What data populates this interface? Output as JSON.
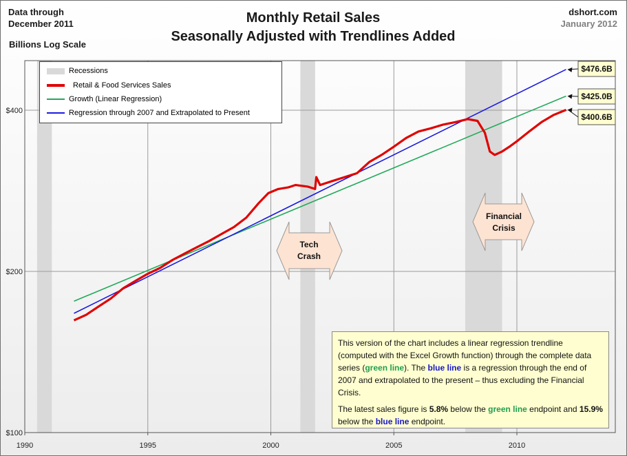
{
  "header": {
    "note_line1": "Data through",
    "note_line2": "December 2011",
    "scale_label": "Billions Log Scale",
    "title_line1": "Monthly Retail Sales",
    "title_line2": "Seasonally Adjusted with Trendlines Added",
    "source": "dshort.com",
    "source_date": "January 2012"
  },
  "legend": {
    "recessions": "Recessions",
    "retail": "Retail & Food Services Sales",
    "growth": "Growth (Linear Regression)",
    "regression": "Regression through 2007 and Extrapolated to Present"
  },
  "annotations": {
    "tech_line1": "Tech",
    "tech_line2": "Crash",
    "fin_line1": "Financial",
    "fin_line2": "Crisis"
  },
  "textbox": {
    "p1_a": "This version of the chart includes a linear regression trendline (computed with the Excel Growth function) through the complete data series (",
    "p1_green": "green line",
    "p1_b": "). The ",
    "p1_blue": "blue line",
    "p1_c": " is a regression through the end of 2007  and extrapolated to the present –   thus excluding the Financial Crisis.",
    "p2_a": "The latest sales figure is ",
    "p2_pct1": "5.8%",
    "p2_b": " below the ",
    "p2_green": "green line",
    "p2_c": " endpoint and ",
    "p2_pct2": "15.9%",
    "p2_d": " below the ",
    "p2_blue": "blue line",
    "p2_e": " endpoint."
  },
  "colors": {
    "retail": "#e00000",
    "growth": "#21a95a",
    "regression": "#1b1be0",
    "recession": "#d9d9d9",
    "callout_bg": "#fefed0",
    "arrow_fill": "#fde3d2"
  },
  "chart_data": {
    "type": "line",
    "title": "Monthly Retail Sales — Seasonally Adjusted with Trendlines Added",
    "xlabel": "",
    "ylabel": "Billions (log scale)",
    "y_scale": "log",
    "xlim": [
      1990,
      2014
    ],
    "ylim": [
      100,
      500
    ],
    "x_ticks": [
      1990,
      1995,
      2000,
      2005,
      2010
    ],
    "y_ticks": [
      100,
      200,
      400
    ],
    "y_tick_labels": [
      "$100",
      "$200",
      "$400"
    ],
    "legend_position": "top-left",
    "recessions": [
      [
        1990.5,
        1991.1
      ],
      [
        2001.2,
        2001.8
      ],
      [
        2007.9,
        2009.4
      ]
    ],
    "series": [
      {
        "name": "Retail & Food Services Sales",
        "x": [
          1992.0,
          1992.5,
          1993.0,
          1993.5,
          1994.0,
          1994.5,
          1995.0,
          1995.5,
          1996.0,
          1996.5,
          1997.0,
          1997.5,
          1998.0,
          1998.5,
          1999.0,
          1999.5,
          1999.9,
          2000.3,
          2000.7,
          2001.0,
          2001.5,
          2001.8,
          2001.85,
          2002.0,
          2002.5,
          2003.0,
          2003.5,
          2004.0,
          2004.5,
          2005.0,
          2005.5,
          2006.0,
          2006.5,
          2007.0,
          2007.5,
          2008.0,
          2008.4,
          2008.7,
          2008.9,
          2009.1,
          2009.4,
          2009.7,
          2010.0,
          2010.5,
          2011.0,
          2011.5,
          2012.0
        ],
        "values": [
          162,
          166,
          172,
          178,
          186,
          192,
          198,
          203,
          210,
          216,
          222,
          228,
          235,
          242,
          252,
          268,
          280,
          285,
          287,
          290,
          288,
          285,
          300,
          290,
          295,
          300,
          305,
          320,
          330,
          342,
          355,
          365,
          370,
          376,
          380,
          385,
          382,
          363,
          335,
          330,
          335,
          342,
          350,
          365,
          380,
          392,
          400.6
        ]
      },
      {
        "name": "Growth (Linear Regression)",
        "x": [
          1992.0,
          2012.0
        ],
        "values": [
          176,
          425.0
        ]
      },
      {
        "name": "Regression through 2007 and Extrapolated to Present",
        "x": [
          1992.0,
          2012.0
        ],
        "values": [
          167,
          476.6
        ]
      }
    ],
    "end_labels": [
      "$476.6B",
      "$425.0B",
      "$400.6B"
    ]
  }
}
